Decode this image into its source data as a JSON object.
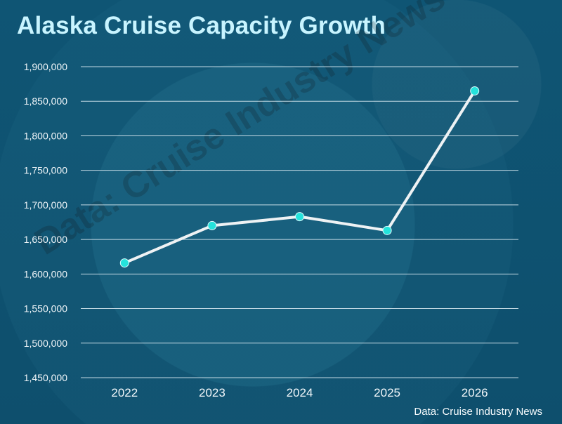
{
  "chart_data": {
    "type": "line",
    "title": "Alaska Cruise Capacity Growth",
    "source": "Data: Cruise Industry News",
    "watermark": "Data: Cruise Industry News",
    "categories": [
      "2022",
      "2023",
      "2024",
      "2025",
      "2026"
    ],
    "series": [
      {
        "values": [
          1616000,
          1670000,
          1683000,
          1663000,
          1865000
        ],
        "line_color": "#eef2f4",
        "marker_color": "#24e3dc"
      }
    ],
    "xlabel": "",
    "ylabel": "",
    "ylim": [
      1450000,
      1900000
    ],
    "y_ticks": [
      "1,900,000",
      "1,850,000",
      "1,800,000",
      "1,750,000",
      "1,700,000",
      "1,650,000",
      "1,600,000",
      "1,550,000",
      "1,500,000",
      "1,450,000"
    ],
    "grid": true,
    "legend": "none"
  },
  "colors": {
    "background": "#0f5473",
    "title": "#c8f4ff",
    "grid": "#d7e8ef",
    "tick_text": "#f2f7fa"
  }
}
